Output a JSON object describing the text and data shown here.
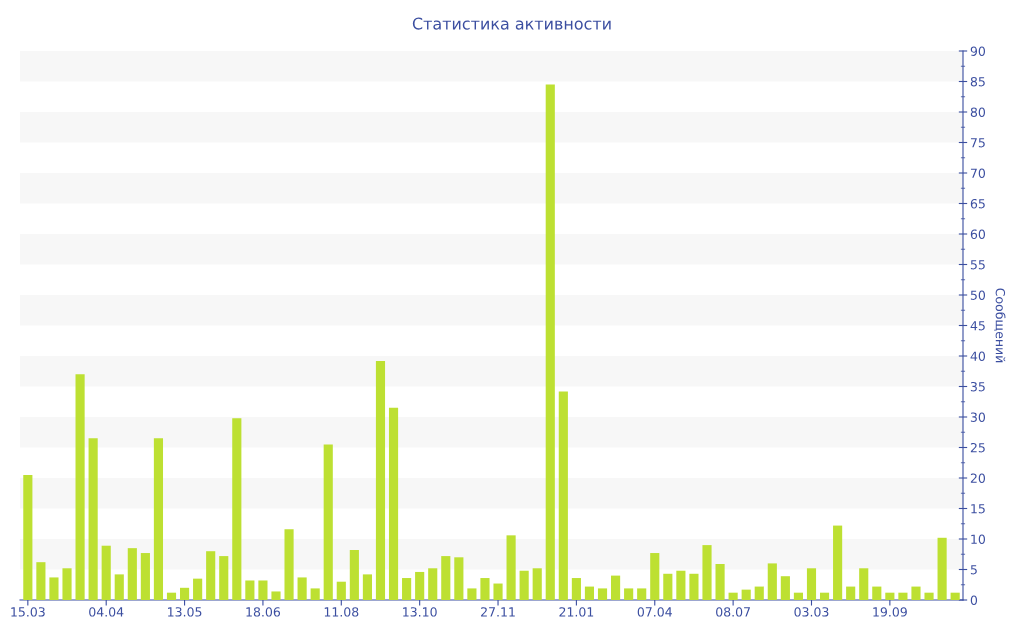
{
  "chart_data": {
    "type": "bar",
    "title": "Статистика активности",
    "ylabel": "Сообщений",
    "categories": [
      "15.03",
      null,
      null,
      null,
      null,
      null,
      "04.04",
      null,
      null,
      null,
      null,
      null,
      "13.05",
      null,
      null,
      null,
      null,
      null,
      "18.06",
      null,
      null,
      null,
      null,
      null,
      "11.08",
      null,
      null,
      null,
      null,
      null,
      "13.10",
      null,
      null,
      null,
      null,
      null,
      "27.11",
      null,
      null,
      null,
      null,
      null,
      "21.01",
      null,
      null,
      null,
      null,
      null,
      "07.04",
      null,
      null,
      null,
      null,
      null,
      "08.07",
      null,
      null,
      null,
      null,
      null,
      "03.03",
      null,
      null,
      null,
      null,
      null,
      "19.09",
      null,
      null,
      null,
      null,
      null
    ],
    "values": [
      20.5,
      6.2,
      3.7,
      5.2,
      37,
      26.5,
      8.9,
      4.2,
      8.5,
      7.7,
      26.5,
      1.2,
      2,
      3.5,
      8,
      7.2,
      29.8,
      3.2,
      3.2,
      1.4,
      11.6,
      3.7,
      1.9,
      25.5,
      3,
      8.2,
      4.2,
      39.2,
      31.5,
      3.6,
      4.6,
      5.2,
      7.2,
      7,
      1.9,
      3.6,
      2.7,
      10.6,
      4.8,
      5.2,
      84.5,
      34.2,
      3.6,
      2.2,
      1.9,
      4,
      1.9,
      1.9,
      7.7,
      4.3,
      4.8,
      4.3,
      9,
      5.9,
      1.2,
      1.7,
      2.2,
      6,
      3.9,
      1.2,
      5.2,
      1.2,
      12.2,
      2.2,
      5.2,
      2.2,
      1.2,
      1.2,
      2.2,
      1.2,
      10.2,
      1.2
    ],
    "color": "#bde032",
    "ylim": [
      0,
      90
    ],
    "yticks": [
      0,
      5,
      10,
      15,
      20,
      25,
      30,
      35,
      40,
      45,
      50,
      55,
      60,
      65,
      70,
      75,
      80,
      85,
      90
    ],
    "bands": [
      {
        "axis": "y",
        "from": 5,
        "to": 10,
        "color": "#f7f7f7"
      },
      {
        "axis": "y",
        "from": 15,
        "to": 20,
        "color": "#f7f7f7"
      },
      {
        "axis": "y",
        "from": 25,
        "to": 30,
        "color": "#f7f7f7"
      },
      {
        "axis": "y",
        "from": 35,
        "to": 40,
        "color": "#f7f7f7"
      },
      {
        "axis": "y",
        "from": 45,
        "to": 50,
        "color": "#f7f7f7"
      },
      {
        "axis": "y",
        "from": 55,
        "to": 60,
        "color": "#f7f7f7"
      },
      {
        "axis": "y",
        "from": 65,
        "to": 70,
        "color": "#f7f7f7"
      },
      {
        "axis": "y",
        "from": 75,
        "to": 80,
        "color": "#f7f7f7"
      },
      {
        "axis": "y",
        "from": 85,
        "to": 90,
        "color": "#f7f7f7"
      }
    ]
  }
}
